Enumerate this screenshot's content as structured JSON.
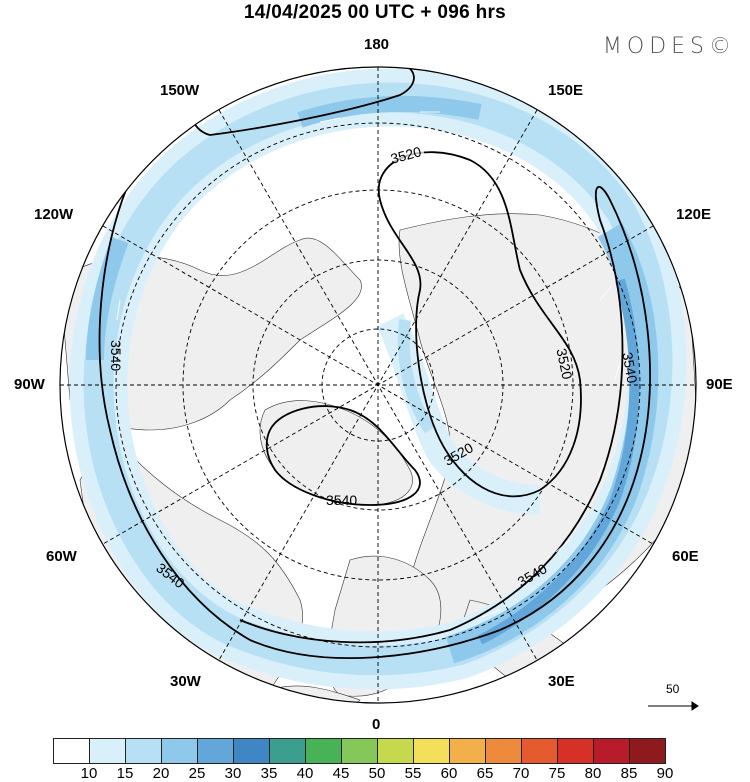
{
  "title": "14/04/2025  00 UTC  + 096 hrs",
  "brand": "MODES©",
  "longitude_labels": {
    "top": "180",
    "bottom": "0",
    "left": "90W",
    "right": "90E",
    "upper_left": "150W",
    "upper_right": "150E",
    "mid_upper_left": "120W",
    "mid_upper_right": "120E",
    "lower_left": "60W",
    "lower_right": "60E",
    "bottom_left": "30W",
    "bottom_right": "30E"
  },
  "contours": [
    {
      "value": "3520",
      "label_positions": 3
    },
    {
      "value": "3540",
      "label_positions": 5
    }
  ],
  "contour_labels": [
    "3520",
    "3520",
    "3520",
    "3540",
    "3540",
    "3540",
    "3540",
    "3540"
  ],
  "vector_reference": {
    "label": "50"
  },
  "colorbar": {
    "labels": [
      "10",
      "15",
      "20",
      "25",
      "30",
      "35",
      "40",
      "45",
      "50",
      "55",
      "60",
      "65",
      "70",
      "75",
      "80",
      "85",
      "90"
    ],
    "colors": [
      "#ffffff",
      "#d9f0fb",
      "#b8e0f4",
      "#8ec8ea",
      "#62a6da",
      "#3f87c4",
      "#3c9e8e",
      "#48b257",
      "#86c75a",
      "#c6d94c",
      "#f4df5a",
      "#f3b04a",
      "#ee8a3c",
      "#e55a2f",
      "#d73027",
      "#b81c2a",
      "#8e1a1e"
    ]
  },
  "colors": {
    "land": "#f0f0f0",
    "ocean": "#ffffff",
    "jet_light": "#d9f0fb",
    "jet_mid": "#b8e0f4",
    "jet_strong": "#8ec8ea",
    "jet_core": "#62a6da"
  }
}
